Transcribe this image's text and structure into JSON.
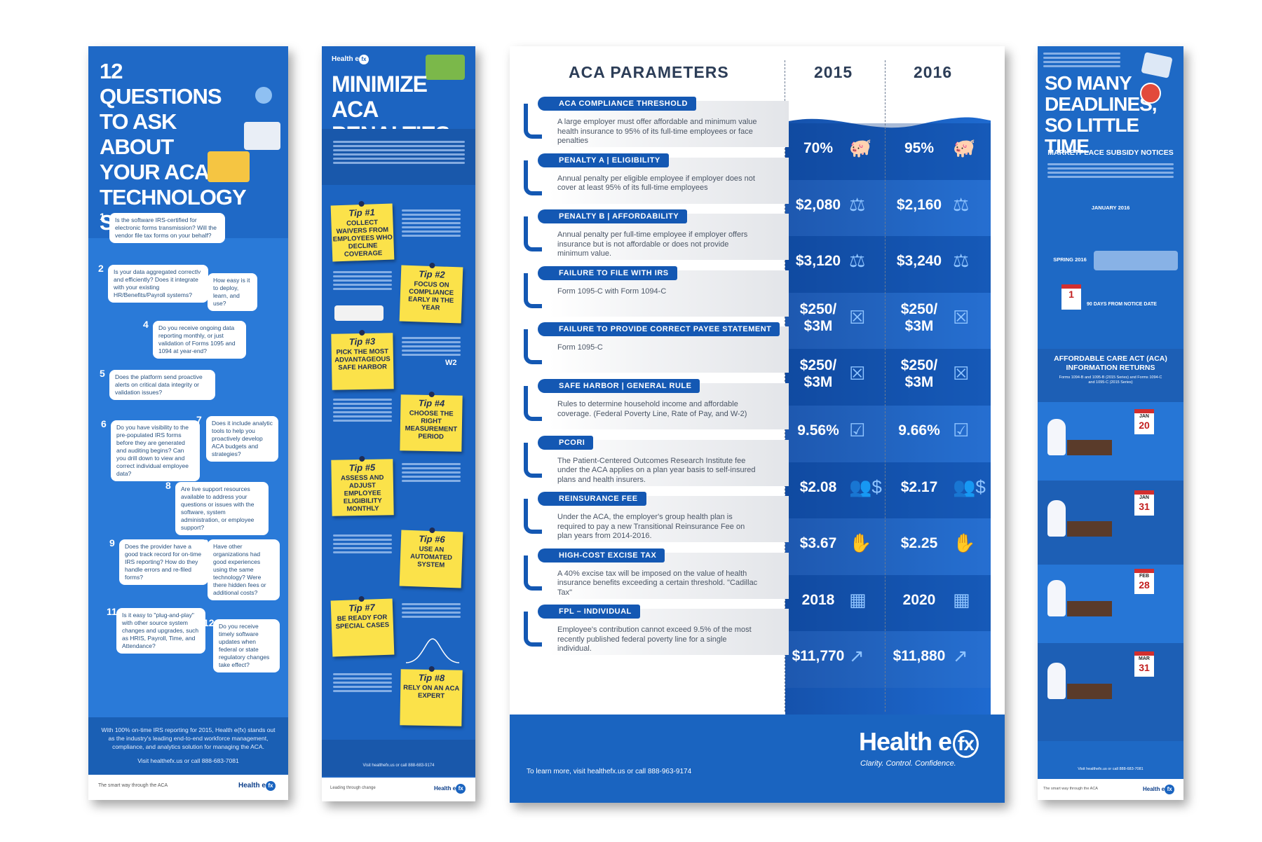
{
  "poster1": {
    "title": "12 QUESTIONS TO ASK ABOUT YOUR ACA TECHNOLOGY SOLUTION",
    "questions": [
      {
        "n": "1",
        "text": "Is the software IRS-certified for electronic forms transmission? Will the vendor file tax forms on your behalf?"
      },
      {
        "n": "2",
        "text": "Is your data aggregated correctly and efficiently? Does it integrate with your existing HR/Benefits/Payroll systems?"
      },
      {
        "n": "3",
        "text": "How easy is it to deploy, learn, and use?"
      },
      {
        "n": "4",
        "text": "Do you receive ongoing data reporting monthly, or just validation of Forms 1095 and 1094 at year-end?"
      },
      {
        "n": "5",
        "text": "Does the platform send proactive alerts on critical data integrity or validation issues?"
      },
      {
        "n": "6",
        "text": "Do you have visibility to the pre-populated IRS forms before they are generated and auditing begins? Can you drill down to view and correct individual employee data?"
      },
      {
        "n": "7",
        "text": "Does it include analytic tools to help you proactively develop ACA budgets and strategies?"
      },
      {
        "n": "8",
        "text": "Are live support resources available to address your questions or issues with the software, system administration, or employee support?"
      },
      {
        "n": "9",
        "text": "Does the provider have a good track record for on-time IRS reporting? How do they handle errors and re-filed forms?"
      },
      {
        "n": "10",
        "text": "Have other organizations had good experiences using the same technology? Were there hidden fees or additional costs?"
      },
      {
        "n": "11",
        "text": "Is it easy to \"plug-and-play\" with other source system changes and upgrades, such as HRIS, Payroll, Time, and Attendance?"
      },
      {
        "n": "12",
        "text": "Do you receive timely software updates when federal or state regulatory changes take effect?"
      }
    ],
    "footer_text": "With 100% on-time IRS reporting for 2015, Health e(fx) stands out as the industry's leading end-to-end workforce management, compliance, and analytics solution for managing the ACA.",
    "footer_contact": "Visit healthefx.us or call 888-683-7081",
    "tagline": "The smart way through the ACA",
    "logo": "Health e",
    "logo_fx": "fx"
  },
  "poster2": {
    "logo": "Health e",
    "logo_fx": "fx",
    "title": "MINIMIZE ACA PENALTIES",
    "tips": [
      {
        "n": "Tip #1",
        "text": "COLLECT WAIVERS FROM EMPLOYEES WHO DECLINE COVERAGE"
      },
      {
        "n": "Tip #2",
        "text": "FOCUS ON COMPLIANCE EARLY IN THE YEAR"
      },
      {
        "n": "Tip #3",
        "text": "PICK THE MOST ADVANTAGEOUS SAFE HARBOR"
      },
      {
        "n": "Tip #4",
        "text": "CHOOSE THE RIGHT MEASUREMENT PERIOD"
      },
      {
        "n": "Tip #5",
        "text": "ASSESS AND ADJUST EMPLOYEE ELIGIBILITY MONTHLY"
      },
      {
        "n": "Tip #6",
        "text": "USE AN AUTOMATED SYSTEM"
      },
      {
        "n": "Tip #7",
        "text": "BE READY FOR SPECIAL CASES"
      },
      {
        "n": "Tip #8",
        "text": "RELY ON AN ACA EXPERT"
      }
    ],
    "w2": "W2",
    "footer_contact": "Visit healthefx.us or call 888-683-9174",
    "tagline": "Leading through change"
  },
  "poster3": {
    "header": "ACA PARAMETERS",
    "col_2015": "2015",
    "col_2016": "2016",
    "rows": [
      {
        "label": "ACA COMPLIANCE THRESHOLD",
        "desc": "A large employer must offer affordable and minimum value health insurance to 95% of its full-time employees or face penalties",
        "v2015": "70%",
        "v2016": "95%",
        "icon": "piggy-bank-icon",
        "glyph": "🐖"
      },
      {
        "label": "PENALTY A | ELIGIBILITY",
        "desc": "Annual penalty per eligible employee if employer does not cover at least 95% of its full-time employees",
        "v2015": "$2,080",
        "v2016": "$2,160",
        "icon": "gavel-icon",
        "glyph": "⚖"
      },
      {
        "label": "PENALTY B | AFFORDABILITY",
        "desc": "Annual penalty per full-time employee if employer offers insurance but is not affordable or does not provide minimum value.",
        "v2015": "$3,120",
        "v2016": "$3,240",
        "icon": "gavel-icon",
        "glyph": "⚖"
      },
      {
        "label": "FAILURE TO FILE WITH IRS",
        "desc": "Form 1095-C with Form 1094-C",
        "v2015": "$250/ $3M",
        "v2016": "$250/ $3M",
        "icon": "document-x-icon",
        "glyph": "☒"
      },
      {
        "label": "FAILURE TO PROVIDE CORRECT PAYEE STATEMENT",
        "desc": "Form 1095-C",
        "v2015": "$250/ $3M",
        "v2016": "$250/ $3M",
        "icon": "document-x-icon",
        "glyph": "☒"
      },
      {
        "label": "SAFE HARBOR | GENERAL RULE",
        "desc": "Rules to determine household income and affordable coverage. (Federal Poverty Line, Rate of Pay, and W-2)",
        "v2015": "9.56%",
        "v2016": "9.66%",
        "icon": "checklist-icon",
        "glyph": "☑"
      },
      {
        "label": "PCORI",
        "desc": "The Patient-Centered Outcomes Research Institute fee under the ACA applies on a plan year basis to self-insured plans and health insurers.",
        "v2015": "$2.08",
        "v2016": "$2.17",
        "icon": "people-dollar-icon",
        "glyph": "👥$"
      },
      {
        "label": "REINSURANCE FEE",
        "desc": "Under the ACA, the employer's group health plan is required to pay a new Transitional Reinsurance Fee on plan years from 2014-2016.",
        "v2015": "$3.67",
        "v2016": "$2.25",
        "icon": "hand-money-icon",
        "glyph": "✋"
      },
      {
        "label": "HIGH-COST EXCISE TAX",
        "desc": "A 40% excise tax will be imposed on the value of health insurance benefits exceeding a certain threshold. \"Cadillac Tax\"",
        "v2015": "2018",
        "v2016": "2020",
        "icon": "calculator-icon",
        "glyph": "▦"
      },
      {
        "label": "FPL – INDIVIDUAL",
        "desc": "Employee's contribution cannot exceed 9.5% of the most recently published federal poverty line for a single individual.",
        "v2015": "$11,770",
        "v2016": "$11,880",
        "icon": "trend-up-icon",
        "glyph": "↗"
      }
    ],
    "cta": "To learn more, visit healthefx.us or call 888-963-9174",
    "brand": "Health e",
    "brand_fx": "fx",
    "brand_tagline": "Clarity. Control. Confidence."
  },
  "poster4": {
    "title": "SO MANY DEADLINES, SO LITTLE TIME",
    "sec1": "MARKETPLACE SUBSIDY NOTICES",
    "jan2016": "JANUARY 2016",
    "spring2016": "SPRING 2016",
    "notice": "90 DAYS FROM NOTICE DATE",
    "sec2": "AFFORDABLE CARE ACT (ACA) INFORMATION RETURNS",
    "sec2_sub": "Forms 1094-B and 1095-B (2015 Series) and Forms 1094-C and 1095-C (2015 Series)",
    "dates": [
      {
        "m": "JAN",
        "d": "20"
      },
      {
        "m": "JAN",
        "d": "31"
      },
      {
        "m": "FEB",
        "d": "28"
      },
      {
        "m": "MAR",
        "d": "31"
      }
    ],
    "footer_contact": "Visit healthefx.us or call 888-683-7081",
    "tagline": "The smart way through the ACA",
    "logo": "Health e",
    "logo_fx": "fx"
  },
  "colors": {
    "brand_blue": "#1a64c0",
    "dark_blue": "#1458b3",
    "sticky": "#fbe24a",
    "red": "#d22f2f"
  }
}
